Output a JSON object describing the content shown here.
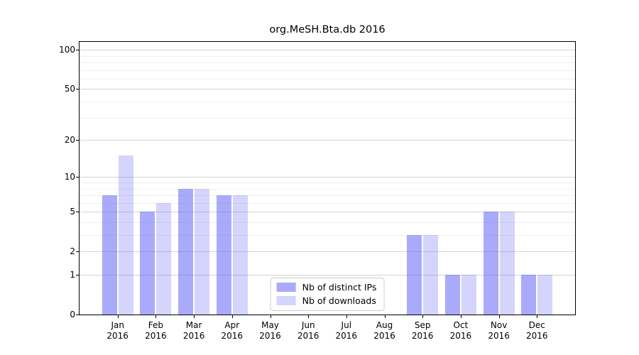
{
  "chart_data": {
    "type": "bar",
    "title": "org.MeSH.Bta.db 2016",
    "categories": [
      "Jan",
      "Feb",
      "Mar",
      "Apr",
      "May",
      "Jun",
      "Jul",
      "Aug",
      "Sep",
      "Oct",
      "Nov",
      "Dec"
    ],
    "x_year": "2016",
    "series": [
      {
        "name": "Nb of distinct IPs",
        "values": [
          7,
          5,
          8,
          7,
          0,
          0,
          0,
          0,
          3,
          1,
          5,
          1
        ],
        "color": "rgba(85,85,245,0.5)"
      },
      {
        "name": "Nb of downloads",
        "values": [
          15,
          6,
          8,
          7,
          0,
          0,
          0,
          0,
          3,
          1,
          5,
          1
        ],
        "color": "rgba(85,85,245,0.25)"
      }
    ],
    "y_tick_labels": [
      "0",
      "1",
      "2",
      "5",
      "10",
      "20",
      "50",
      "100"
    ],
    "y_ticks_major": [
      1,
      2,
      5,
      10,
      20,
      50,
      100
    ],
    "y_ticks_minor": [
      3,
      4,
      6,
      7,
      8,
      9,
      30,
      40,
      60,
      70,
      80,
      90
    ],
    "ylim": [
      0,
      115
    ],
    "yscale": "log1p",
    "grid": true,
    "legend_position": "lower center",
    "colors": {
      "grid_major": "#d4d4d4",
      "grid_minor": "#efefef",
      "axis": "#000000",
      "legend_border": "#cccccc"
    }
  }
}
